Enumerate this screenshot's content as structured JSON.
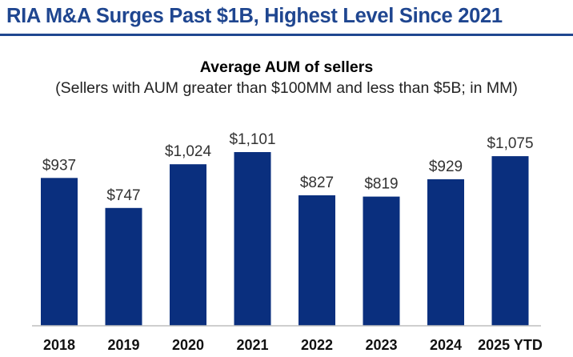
{
  "headline": "RIA M&A Surges Past $1B, Highest Level Since 2021",
  "colors": {
    "headline": "#1f4690",
    "bar": "#0a2f7e",
    "axis": "#bfbfbf"
  },
  "chart_data": {
    "type": "bar",
    "title": "Average AUM of sellers",
    "subtitle": "(Sellers with AUM greater than $100MM and less than $5B; in MM)",
    "categories": [
      "2018",
      "2019",
      "2020",
      "2021",
      "2022",
      "2023",
      "2024",
      "2025 YTD"
    ],
    "values": [
      937,
      747,
      1024,
      1101,
      827,
      819,
      929,
      1075
    ],
    "data_labels": [
      "$937",
      "$747",
      "$1,024",
      "$1,101",
      "$827",
      "$819",
      "$929",
      "$1,075"
    ],
    "xlabel": "",
    "ylabel": "",
    "ylim": [
      0,
      1101
    ],
    "grid": false,
    "legend": "none"
  }
}
